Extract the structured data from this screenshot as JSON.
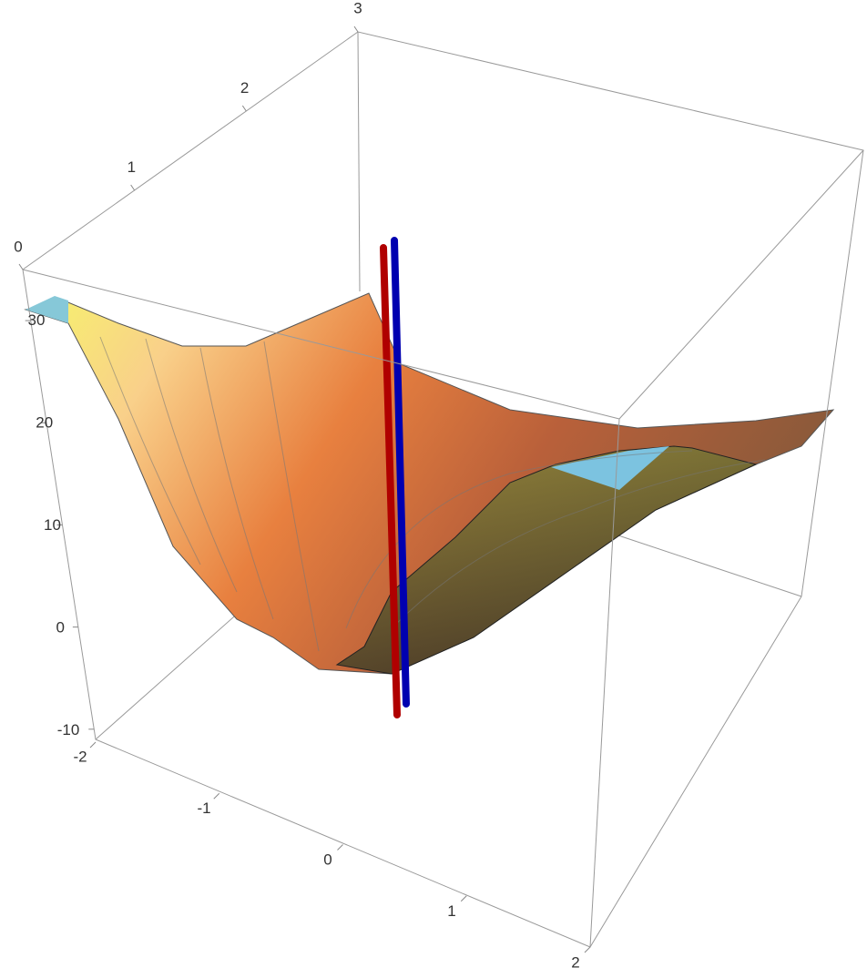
{
  "chart_data": {
    "type": "surface3d",
    "xlim": [
      -2,
      2
    ],
    "xticks": [
      -2,
      -1,
      0,
      1,
      2
    ],
    "ylim": [
      0,
      3
    ],
    "yticks": [
      0,
      1,
      2,
      3
    ],
    "zlim": [
      -11,
      35
    ],
    "zticks": [
      -10,
      0,
      10,
      20,
      30
    ]
  }
}
